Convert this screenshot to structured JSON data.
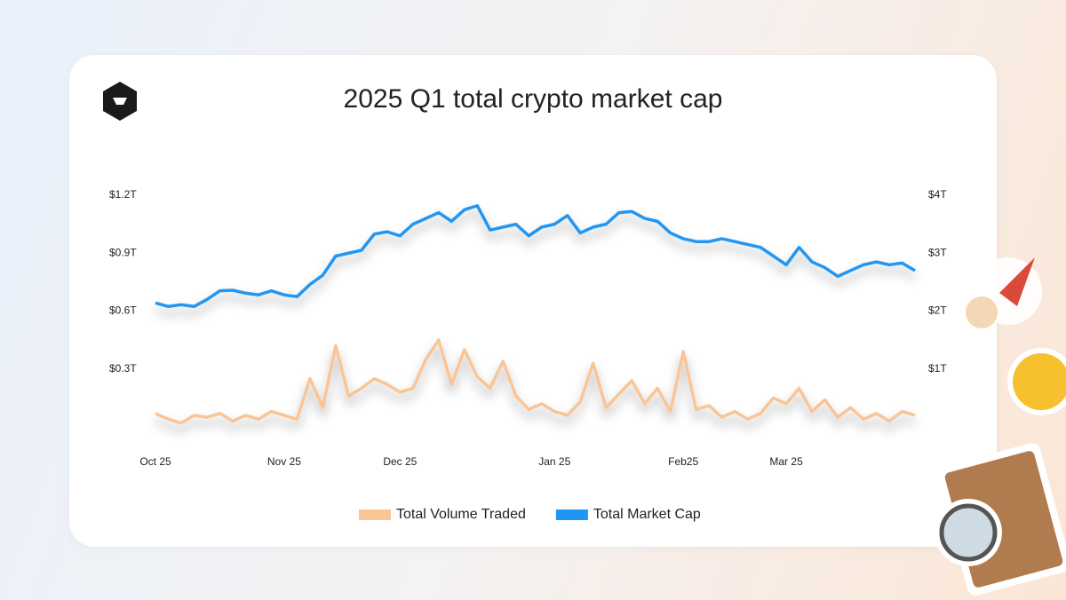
{
  "chart_data": {
    "type": "line",
    "title": "2025 Q1 total crypto market cap",
    "series": [
      {
        "name": "Total Volume Traded",
        "color": "#f9c595",
        "axis": "y",
        "values": [
          0.07,
          0.04,
          0.02,
          0.06,
          0.05,
          0.07,
          0.03,
          0.06,
          0.04,
          0.08,
          0.06,
          0.04,
          0.25,
          0.1,
          0.42,
          0.16,
          0.2,
          0.25,
          0.22,
          0.18,
          0.2,
          0.35,
          0.45,
          0.22,
          0.4,
          0.26,
          0.2,
          0.34,
          0.16,
          0.09,
          0.12,
          0.08,
          0.06,
          0.13,
          0.33,
          0.1,
          0.17,
          0.24,
          0.12,
          0.2,
          0.08,
          0.39,
          0.09,
          0.11,
          0.05,
          0.08,
          0.04,
          0.07,
          0.15,
          0.12,
          0.2,
          0.08,
          0.14,
          0.05,
          0.1,
          0.04,
          0.07,
          0.03,
          0.08,
          0.06
        ]
      },
      {
        "name": "Total Market Cap",
        "color": "#2196f0",
        "axis": "y2",
        "values": [
          2.14,
          2.08,
          2.11,
          2.08,
          2.2,
          2.35,
          2.36,
          2.31,
          2.28,
          2.35,
          2.28,
          2.25,
          2.46,
          2.62,
          2.95,
          3.0,
          3.05,
          3.33,
          3.37,
          3.3,
          3.5,
          3.6,
          3.7,
          3.55,
          3.75,
          3.82,
          3.4,
          3.45,
          3.5,
          3.3,
          3.45,
          3.5,
          3.65,
          3.35,
          3.45,
          3.5,
          3.7,
          3.72,
          3.6,
          3.55,
          3.35,
          3.25,
          3.2,
          3.2,
          3.25,
          3.2,
          3.15,
          3.1,
          2.95,
          2.8,
          3.1,
          2.85,
          2.75,
          2.6,
          2.7,
          2.8,
          2.85,
          2.8,
          2.83,
          2.7
        ]
      }
    ],
    "xlim": [
      0,
      59
    ],
    "xticks": [
      {
        "value": 0,
        "label": "Oct 25"
      },
      {
        "value": 10,
        "label": "Nov 25"
      },
      {
        "value": 19,
        "label": "Dec 25"
      },
      {
        "value": 31,
        "label": "Jan 25"
      },
      {
        "value": 41,
        "label": "Feb25"
      },
      {
        "value": 49,
        "label": "Mar 25"
      }
    ],
    "ylim": [
      0,
      1.2
    ],
    "yticks": [
      {
        "value": 0.3,
        "label": "$0.3T"
      },
      {
        "value": 0.6,
        "label": "$0.6T"
      },
      {
        "value": 0.9,
        "label": "$0.9T"
      },
      {
        "value": 1.2,
        "label": "$1.2T"
      }
    ],
    "y2lim": [
      0,
      4
    ],
    "y2ticks": [
      {
        "value": 1,
        "label": "$1T"
      },
      {
        "value": 2,
        "label": "$2T"
      },
      {
        "value": 3,
        "label": "$3T"
      },
      {
        "value": 4,
        "label": "$4T"
      }
    ]
  }
}
